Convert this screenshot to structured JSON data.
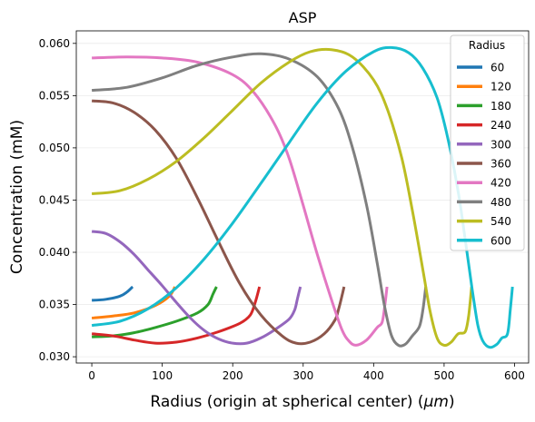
{
  "chart_data": {
    "type": "line",
    "title": "ASP",
    "xlabel": "Radius (origin at spherical center) (",
    "xlabel_unit": "μm",
    "xlabel_close": ")",
    "ylabel": "Concentration (mM)",
    "xlim": [
      -22,
      620
    ],
    "ylim": [
      0.0294,
      0.0612
    ],
    "xticks": [
      0,
      100,
      200,
      300,
      400,
      500,
      600
    ],
    "xtick_labels": [
      "0",
      "100",
      "200",
      "300",
      "400",
      "500",
      "600"
    ],
    "yticks": [
      0.03,
      0.035,
      0.04,
      0.045,
      0.05,
      0.055,
      0.06
    ],
    "ytick_labels": [
      "0.030",
      "0.035",
      "0.040",
      "0.045",
      "0.050",
      "0.055",
      "0.060"
    ],
    "grid": "horizontal-light",
    "legend": {
      "title": "Radius",
      "placement": "top-right"
    },
    "series": [
      {
        "name": "60",
        "color": "#1f77b4",
        "points": [
          [
            0,
            0.0354
          ],
          [
            20,
            0.0355
          ],
          [
            40,
            0.0358
          ],
          [
            50,
            0.0362
          ],
          [
            58,
            0.0367
          ]
        ]
      },
      {
        "name": "120",
        "color": "#ff7f0e",
        "points": [
          [
            0,
            0.0337
          ],
          [
            30,
            0.0339
          ],
          [
            60,
            0.0342
          ],
          [
            90,
            0.0349
          ],
          [
            110,
            0.0358
          ],
          [
            118,
            0.0367
          ]
        ]
      },
      {
        "name": "180",
        "color": "#2ca02c",
        "points": [
          [
            0,
            0.0319
          ],
          [
            30,
            0.032
          ],
          [
            60,
            0.0323
          ],
          [
            90,
            0.0328
          ],
          [
            120,
            0.0334
          ],
          [
            150,
            0.0342
          ],
          [
            165,
            0.035
          ],
          [
            172,
            0.036
          ],
          [
            177,
            0.0367
          ]
        ]
      },
      {
        "name": "240",
        "color": "#d62728",
        "points": [
          [
            0,
            0.0322
          ],
          [
            30,
            0.032
          ],
          [
            60,
            0.0316
          ],
          [
            90,
            0.0313
          ],
          [
            120,
            0.0314
          ],
          [
            150,
            0.0318
          ],
          [
            180,
            0.0324
          ],
          [
            210,
            0.0332
          ],
          [
            225,
            0.034
          ],
          [
            232,
            0.0352
          ],
          [
            238,
            0.0367
          ]
        ]
      },
      {
        "name": "300",
        "color": "#9467bd",
        "points": [
          [
            0,
            0.042
          ],
          [
            20,
            0.0418
          ],
          [
            40,
            0.041
          ],
          [
            60,
            0.0398
          ],
          [
            80,
            0.0383
          ],
          [
            100,
            0.0368
          ],
          [
            120,
            0.0352
          ],
          [
            140,
            0.0337
          ],
          [
            160,
            0.0325
          ],
          [
            180,
            0.0317
          ],
          [
            200,
            0.0313
          ],
          [
            220,
            0.0313
          ],
          [
            240,
            0.0318
          ],
          [
            260,
            0.0326
          ],
          [
            280,
            0.0336
          ],
          [
            288,
            0.0345
          ],
          [
            292,
            0.0356
          ],
          [
            296,
            0.0367
          ]
        ]
      },
      {
        "name": "360",
        "color": "#8c564b",
        "points": [
          [
            0,
            0.0545
          ],
          [
            30,
            0.0543
          ],
          [
            60,
            0.0534
          ],
          [
            90,
            0.0517
          ],
          [
            120,
            0.049
          ],
          [
            150,
            0.0452
          ],
          [
            180,
            0.041
          ],
          [
            210,
            0.037
          ],
          [
            240,
            0.034
          ],
          [
            270,
            0.032
          ],
          [
            290,
            0.0313
          ],
          [
            310,
            0.0314
          ],
          [
            330,
            0.0322
          ],
          [
            345,
            0.0335
          ],
          [
            350,
            0.0345
          ],
          [
            355,
            0.0358
          ],
          [
            358,
            0.0367
          ]
        ]
      },
      {
        "name": "420",
        "color": "#e377c2",
        "points": [
          [
            0,
            0.0586
          ],
          [
            50,
            0.0587
          ],
          [
            100,
            0.0586
          ],
          [
            150,
            0.0582
          ],
          [
            200,
            0.057
          ],
          [
            230,
            0.0553
          ],
          [
            260,
            0.0522
          ],
          [
            280,
            0.049
          ],
          [
            300,
            0.0445
          ],
          [
            320,
            0.0398
          ],
          [
            340,
            0.0355
          ],
          [
            355,
            0.0326
          ],
          [
            365,
            0.0315
          ],
          [
            375,
            0.0311
          ],
          [
            390,
            0.0316
          ],
          [
            405,
            0.0328
          ],
          [
            412,
            0.0333
          ],
          [
            416,
            0.035
          ],
          [
            419,
            0.0367
          ]
        ]
      },
      {
        "name": "480",
        "color": "#7f7f7f",
        "points": [
          [
            0,
            0.0555
          ],
          [
            50,
            0.0558
          ],
          [
            100,
            0.0567
          ],
          [
            150,
            0.0579
          ],
          [
            200,
            0.0587
          ],
          [
            240,
            0.059
          ],
          [
            280,
            0.0585
          ],
          [
            320,
            0.0568
          ],
          [
            350,
            0.0538
          ],
          [
            370,
            0.05
          ],
          [
            390,
            0.0445
          ],
          [
            405,
            0.039
          ],
          [
            415,
            0.035
          ],
          [
            425,
            0.0321
          ],
          [
            435,
            0.0311
          ],
          [
            445,
            0.0312
          ],
          [
            455,
            0.032
          ],
          [
            465,
            0.0329
          ],
          [
            470,
            0.0345
          ],
          [
            474,
            0.0367
          ]
        ]
      },
      {
        "name": "540",
        "color": "#bcbd22",
        "points": [
          [
            0,
            0.0456
          ],
          [
            40,
            0.0459
          ],
          [
            80,
            0.047
          ],
          [
            120,
            0.0487
          ],
          [
            160,
            0.051
          ],
          [
            200,
            0.0536
          ],
          [
            240,
            0.0562
          ],
          [
            280,
            0.0582
          ],
          [
            310,
            0.0592
          ],
          [
            340,
            0.0594
          ],
          [
            370,
            0.0587
          ],
          [
            400,
            0.0565
          ],
          [
            420,
            0.0536
          ],
          [
            440,
            0.049
          ],
          [
            455,
            0.044
          ],
          [
            470,
            0.0383
          ],
          [
            480,
            0.0344
          ],
          [
            490,
            0.0318
          ],
          [
            500,
            0.0311
          ],
          [
            510,
            0.0314
          ],
          [
            520,
            0.0322
          ],
          [
            530,
            0.0324
          ],
          [
            535,
            0.034
          ],
          [
            539,
            0.0367
          ]
        ]
      },
      {
        "name": "600",
        "color": "#17becf",
        "points": [
          [
            0,
            0.033
          ],
          [
            40,
            0.0334
          ],
          [
            80,
            0.0346
          ],
          [
            120,
            0.0366
          ],
          [
            160,
            0.0394
          ],
          [
            200,
            0.0428
          ],
          [
            240,
            0.0466
          ],
          [
            280,
            0.0505
          ],
          [
            320,
            0.0543
          ],
          [
            360,
            0.0573
          ],
          [
            400,
            0.0592
          ],
          [
            425,
            0.0596
          ],
          [
            450,
            0.0591
          ],
          [
            470,
            0.0576
          ],
          [
            490,
            0.0548
          ],
          [
            505,
            0.051
          ],
          [
            520,
            0.0458
          ],
          [
            530,
            0.0412
          ],
          [
            540,
            0.0364
          ],
          [
            548,
            0.033
          ],
          [
            555,
            0.0315
          ],
          [
            565,
            0.0309
          ],
          [
            575,
            0.0312
          ],
          [
            582,
            0.0318
          ],
          [
            590,
            0.0322
          ],
          [
            594,
            0.0345
          ],
          [
            597,
            0.0367
          ]
        ]
      }
    ]
  }
}
